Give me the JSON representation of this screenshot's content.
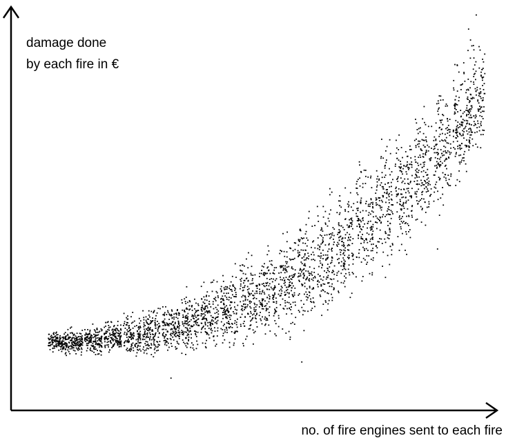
{
  "chart_data": {
    "type": "scatter",
    "title": "",
    "ylabel_lines": [
      "damage done",
      "by each fire in €"
    ],
    "xlabel": "no. of fire engines sent to each fire",
    "xlim": [
      0,
      100
    ],
    "ylim": [
      0,
      100
    ],
    "grid": false,
    "axis_ticks": false,
    "point_color": "#000000",
    "trend_description_values": {
      "x": [
        10,
        20,
        30,
        40,
        50,
        60,
        70,
        80,
        90,
        95
      ],
      "y": [
        6,
        9,
        13,
        19,
        26,
        36,
        49,
        62,
        76,
        82
      ]
    },
    "clusters": [
      {
        "x": 9.5,
        "y_min": 14,
        "y_max": 20
      },
      {
        "x": 13,
        "y_min": 13,
        "y_max": 21
      },
      {
        "x": 17,
        "y_min": 13,
        "y_max": 22
      },
      {
        "x": 21,
        "y_min": 13,
        "y_max": 23
      },
      {
        "x": 25,
        "y_min": 12,
        "y_max": 25
      },
      {
        "x": 29,
        "y_min": 12,
        "y_max": 27
      },
      {
        "x": 33,
        "y_min": 12,
        "y_max": 29
      },
      {
        "x": 37,
        "y_min": 12,
        "y_max": 31
      },
      {
        "x": 41,
        "y_min": 13,
        "y_max": 34
      },
      {
        "x": 45,
        "y_min": 13,
        "y_max": 37
      },
      {
        "x": 49,
        "y_min": 13,
        "y_max": 41
      },
      {
        "x": 53,
        "y_min": 14,
        "y_max": 44
      },
      {
        "x": 57,
        "y_min": 15,
        "y_max": 48
      },
      {
        "x": 61,
        "y_min": 17,
        "y_max": 53
      },
      {
        "x": 65,
        "y_min": 19,
        "y_max": 57
      },
      {
        "x": 69,
        "y_min": 23,
        "y_max": 61
      },
      {
        "x": 73,
        "y_min": 27,
        "y_max": 66
      },
      {
        "x": 77,
        "y_min": 31,
        "y_max": 70
      },
      {
        "x": 81,
        "y_min": 36,
        "y_max": 74
      },
      {
        "x": 85,
        "y_min": 40,
        "y_max": 79
      },
      {
        "x": 89,
        "y_min": 45,
        "y_max": 83
      },
      {
        "x": 93,
        "y_min": 52,
        "y_max": 90
      },
      {
        "x": 96,
        "y_min": 58,
        "y_max": 96
      }
    ]
  }
}
